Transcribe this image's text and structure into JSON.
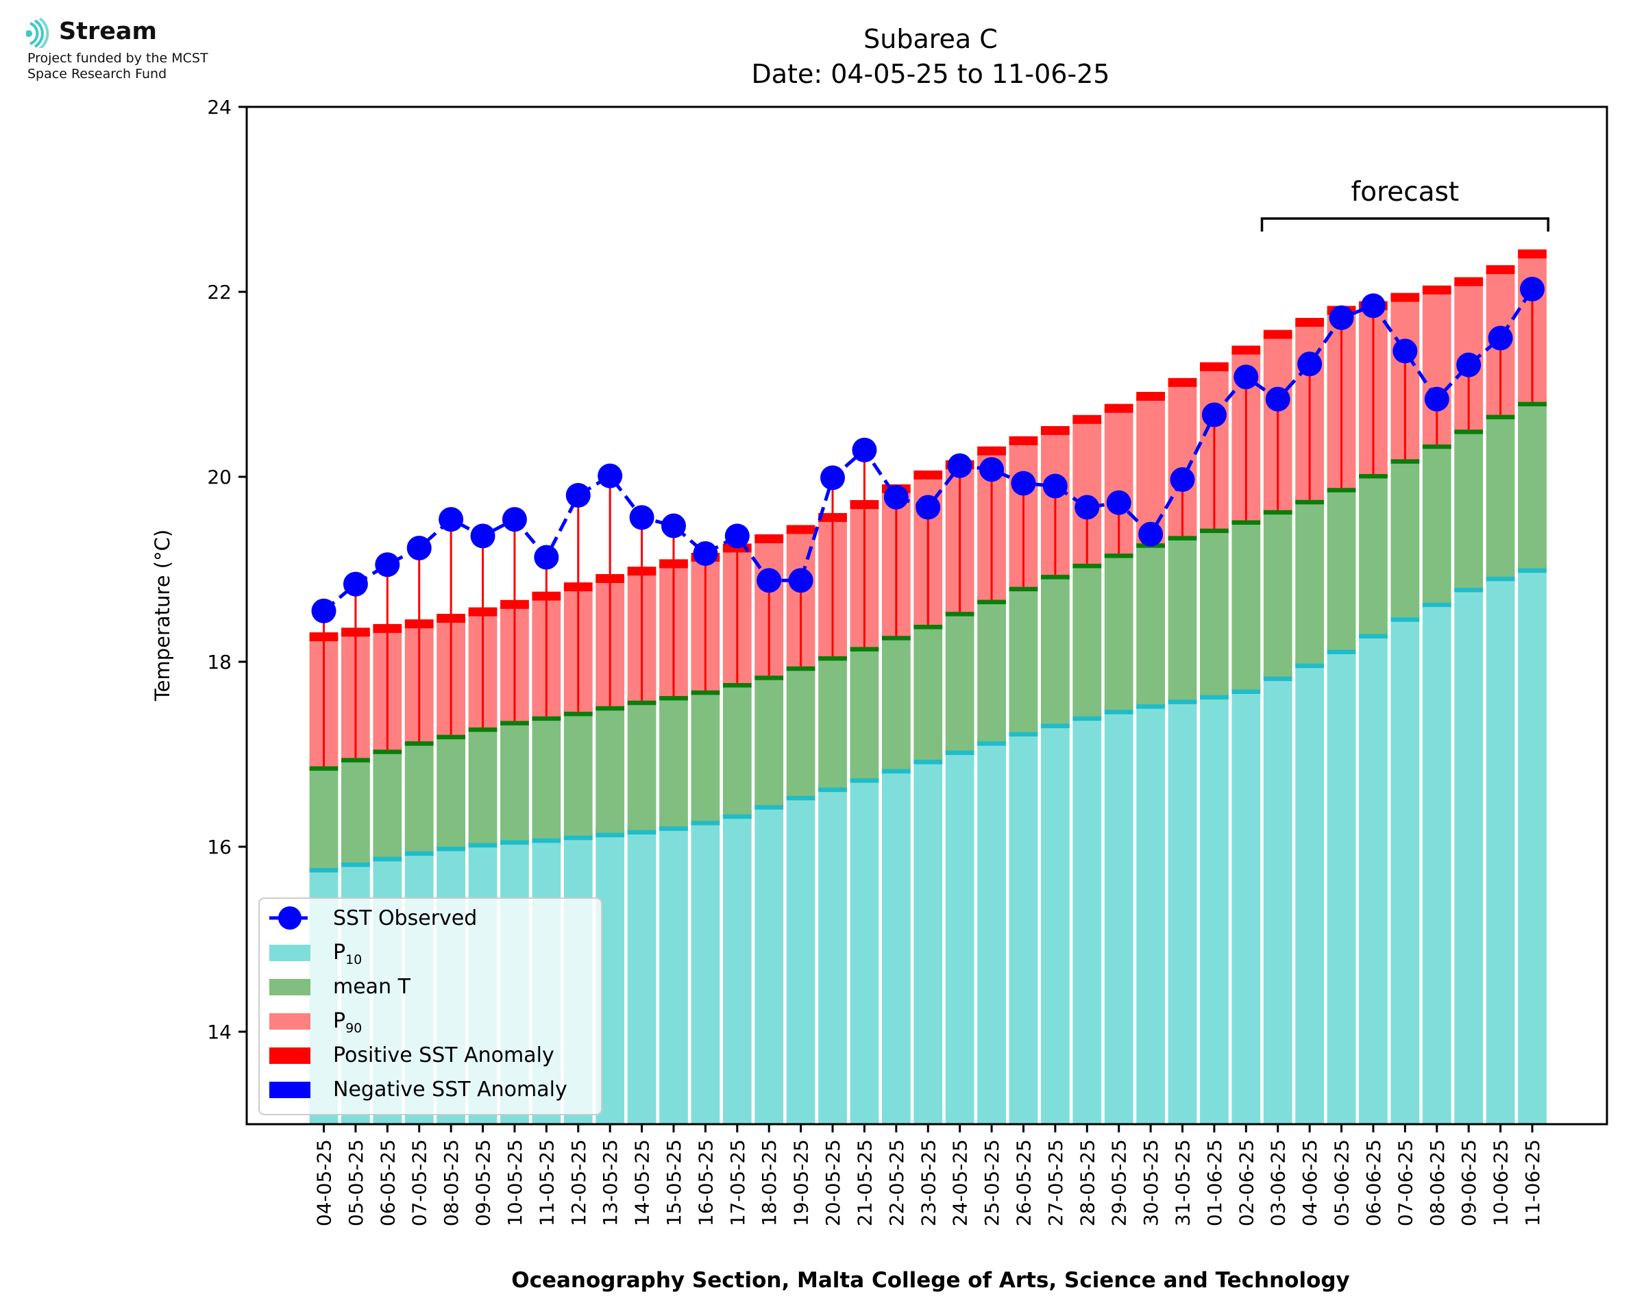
{
  "logo": {
    "name": "Stream",
    "line1": "Project funded by the MCST",
    "line2": "Space Research Fund"
  },
  "chart_data": {
    "type": "bar",
    "title": "Subarea C",
    "subtitle": "Date: 04-05-25 to 11-06-25",
    "ylabel": "Temperature (°C)",
    "xlabel": "Oceanography Section, Malta College of Arts, Science and Technology",
    "ylim": [
      13,
      24
    ],
    "yticks": [
      14,
      16,
      18,
      20,
      22,
      24
    ],
    "annotation": "forecast",
    "forecast_range": [
      "03-06-25",
      "11-06-25"
    ],
    "legend_position": "lower-left",
    "colors": {
      "p10": "#80deda",
      "p10_band": "#1fbcc9",
      "mean": "#80bf80",
      "mean_band": "#0a7d0a",
      "p90": "#ff8080",
      "p90_band": "#ff0000",
      "positive_anomaly": "#ff0000",
      "negative_anomaly": "#0000ff",
      "observed": "#0000ff"
    },
    "legend": [
      {
        "key": "observed",
        "label": "SST Observed"
      },
      {
        "key": "p10",
        "label": "P",
        "sub": "10"
      },
      {
        "key": "mean",
        "label": "mean T"
      },
      {
        "key": "p90",
        "label": "P",
        "sub": "90"
      },
      {
        "key": "positive_anomaly",
        "label": "Positive SST Anomaly"
      },
      {
        "key": "negative_anomaly",
        "label": "Negative SST Anomaly"
      }
    ],
    "categories": [
      "04-05-25",
      "05-05-25",
      "06-05-25",
      "07-05-25",
      "08-05-25",
      "09-05-25",
      "10-05-25",
      "11-05-25",
      "12-05-25",
      "13-05-25",
      "14-05-25",
      "15-05-25",
      "16-05-25",
      "17-05-25",
      "18-05-25",
      "19-05-25",
      "20-05-25",
      "21-05-25",
      "22-05-25",
      "23-05-25",
      "24-05-25",
      "25-05-25",
      "26-05-25",
      "27-05-25",
      "28-05-25",
      "29-05-25",
      "30-05-25",
      "31-05-25",
      "01-06-25",
      "02-06-25",
      "03-06-25",
      "04-06-25",
      "05-06-25",
      "06-06-25",
      "07-06-25",
      "08-06-25",
      "09-06-25",
      "10-06-25",
      "11-06-25"
    ],
    "series": [
      {
        "name": "P10",
        "values": [
          15.77,
          15.83,
          15.89,
          15.95,
          16.0,
          16.04,
          16.07,
          16.09,
          16.12,
          16.15,
          16.18,
          16.22,
          16.28,
          16.35,
          16.45,
          16.55,
          16.64,
          16.74,
          16.84,
          16.94,
          17.04,
          17.14,
          17.24,
          17.33,
          17.41,
          17.48,
          17.54,
          17.59,
          17.64,
          17.7,
          17.84,
          17.98,
          18.13,
          18.3,
          18.48,
          18.64,
          18.8,
          18.92,
          19.01
        ]
      },
      {
        "name": "mean T",
        "values": [
          16.87,
          16.96,
          17.05,
          17.14,
          17.21,
          17.29,
          17.36,
          17.41,
          17.46,
          17.52,
          17.58,
          17.63,
          17.69,
          17.77,
          17.85,
          17.95,
          18.06,
          18.16,
          18.28,
          18.4,
          18.54,
          18.67,
          18.81,
          18.94,
          19.06,
          19.17,
          19.28,
          19.36,
          19.44,
          19.53,
          19.64,
          19.75,
          19.88,
          20.03,
          20.19,
          20.35,
          20.51,
          20.67,
          20.81
        ]
      },
      {
        "name": "P90",
        "values": [
          18.27,
          18.32,
          18.36,
          18.41,
          18.47,
          18.54,
          18.62,
          18.71,
          18.81,
          18.9,
          18.98,
          19.06,
          19.13,
          19.23,
          19.33,
          19.43,
          19.56,
          19.7,
          19.87,
          20.02,
          20.13,
          20.28,
          20.39,
          20.5,
          20.62,
          20.74,
          20.87,
          21.02,
          21.19,
          21.37,
          21.54,
          21.67,
          21.8,
          21.85,
          21.94,
          22.02,
          22.11,
          22.24,
          22.41
        ]
      },
      {
        "name": "SST Observed",
        "values": [
          18.55,
          18.84,
          19.05,
          19.23,
          19.54,
          19.36,
          19.54,
          19.13,
          19.8,
          20.01,
          19.56,
          19.47,
          19.17,
          19.36,
          18.88,
          18.88,
          19.99,
          20.29,
          19.78,
          19.67,
          20.12,
          20.08,
          19.93,
          19.9,
          19.67,
          19.72,
          19.38,
          19.97,
          20.67,
          21.08,
          20.84,
          21.22,
          21.72,
          21.85,
          21.36,
          20.84,
          21.21,
          21.5,
          22.03
        ]
      }
    ]
  }
}
